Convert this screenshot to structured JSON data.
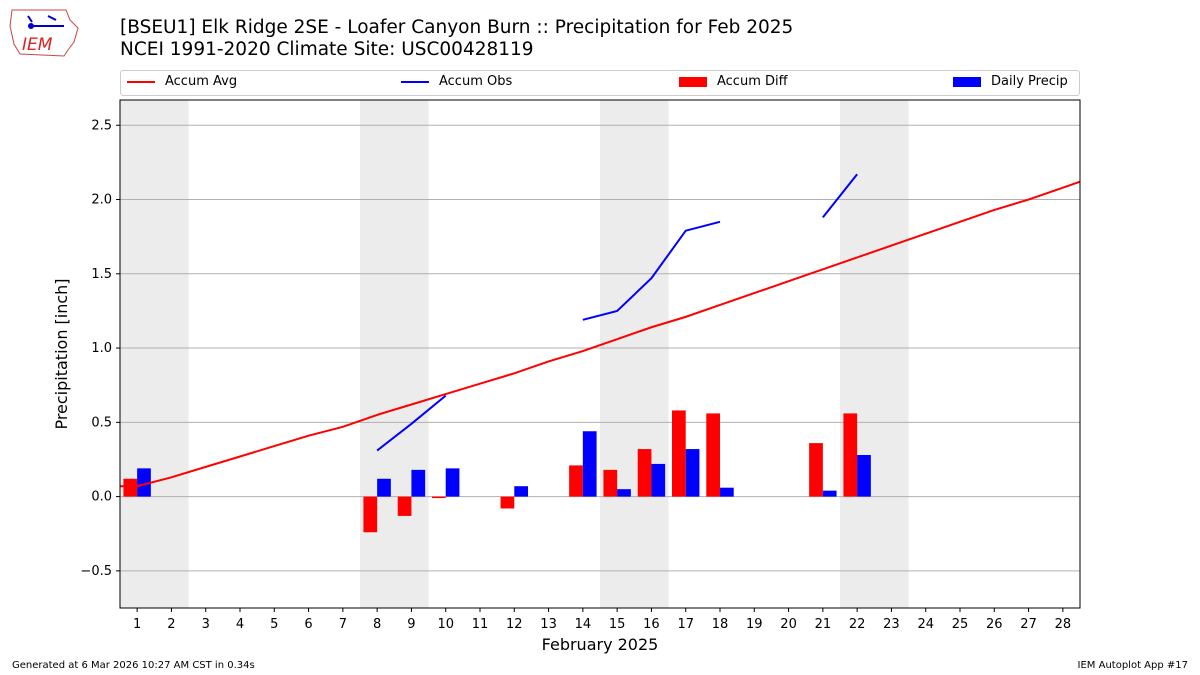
{
  "title_line1": "[BSEU1] Elk Ridge 2SE - Loafer Canyon Burn :: Precipitation for Feb 2025",
  "title_line2": "NCEI 1991-2020 Climate Site: USC00428119",
  "logo_text": "IEM",
  "footer_left": "Generated at 6 Mar 2026 10:27 AM CST in 0.34s",
  "footer_right": "IEM Autoplot App #17",
  "legend": [
    {
      "label": "Accum Avg",
      "color": "#ff0000",
      "kind": "line"
    },
    {
      "label": "Accum Obs",
      "color": "#0000ff",
      "kind": "line"
    },
    {
      "label": "Accum Diff",
      "color": "#ff0000",
      "kind": "bar"
    },
    {
      "label": "Daily Precip",
      "color": "#0000ff",
      "kind": "bar"
    }
  ],
  "chart_data": {
    "type": "bar",
    "xlabel": "February 2025",
    "ylabel": "Precipitation [inch]",
    "xlim": [
      0.5,
      28.5
    ],
    "ylim": [
      -0.75,
      2.67
    ],
    "yticks": [
      -0.5,
      0.0,
      0.5,
      1.0,
      1.5,
      2.0,
      2.5
    ],
    "ytick_labels": [
      "−0.5",
      "0.0",
      "0.5",
      "1.0",
      "1.5",
      "2.0",
      "2.5"
    ],
    "xticks": [
      1,
      2,
      3,
      4,
      5,
      6,
      7,
      8,
      9,
      10,
      11,
      12,
      13,
      14,
      15,
      16,
      17,
      18,
      19,
      20,
      21,
      22,
      23,
      24,
      25,
      26,
      27,
      28
    ],
    "grid": "horizontal",
    "legend_placement": "top",
    "weekend_shading": [
      [
        0.5,
        2.5
      ],
      [
        7.5,
        9.5
      ],
      [
        14.5,
        16.5
      ],
      [
        21.5,
        23.5
      ]
    ],
    "accum_avg": {
      "x": [
        0.5,
        1,
        2,
        3,
        4,
        5,
        6,
        7,
        8,
        9,
        10,
        11,
        12,
        13,
        14,
        15,
        16,
        17,
        18,
        19,
        20,
        21,
        22,
        23,
        24,
        25,
        26,
        27,
        28,
        28.5
      ],
      "y": [
        0.07,
        0.07,
        0.13,
        0.2,
        0.27,
        0.34,
        0.41,
        0.47,
        0.55,
        0.62,
        0.69,
        0.76,
        0.83,
        0.91,
        0.98,
        1.06,
        1.14,
        1.21,
        1.29,
        1.37,
        1.45,
        1.53,
        1.61,
        1.69,
        1.77,
        1.85,
        1.93,
        2.0,
        2.08,
        2.12
      ]
    },
    "accum_obs_segments": [
      {
        "x": [
          8,
          9,
          10
        ],
        "y": [
          0.31,
          0.49,
          0.68
        ]
      },
      {
        "x": [
          14,
          15,
          16,
          17,
          18
        ],
        "y": [
          1.19,
          1.25,
          1.47,
          1.79,
          1.85
        ]
      },
      {
        "x": [
          21,
          22
        ],
        "y": [
          1.88,
          2.17
        ]
      }
    ],
    "accum_diff": {
      "x": [
        1,
        8,
        9,
        10,
        12,
        14,
        15,
        16,
        17,
        18,
        21,
        22
      ],
      "y": [
        0.12,
        -0.24,
        -0.13,
        -0.01,
        -0.08,
        0.21,
        0.18,
        0.32,
        0.58,
        0.56,
        0.36,
        0.56
      ]
    },
    "daily_precip": {
      "x": [
        1,
        8,
        9,
        10,
        12,
        14,
        15,
        16,
        17,
        18,
        21,
        22
      ],
      "y": [
        0.19,
        0.12,
        0.18,
        0.19,
        0.07,
        0.44,
        0.05,
        0.22,
        0.32,
        0.06,
        0.04,
        0.28
      ]
    }
  }
}
